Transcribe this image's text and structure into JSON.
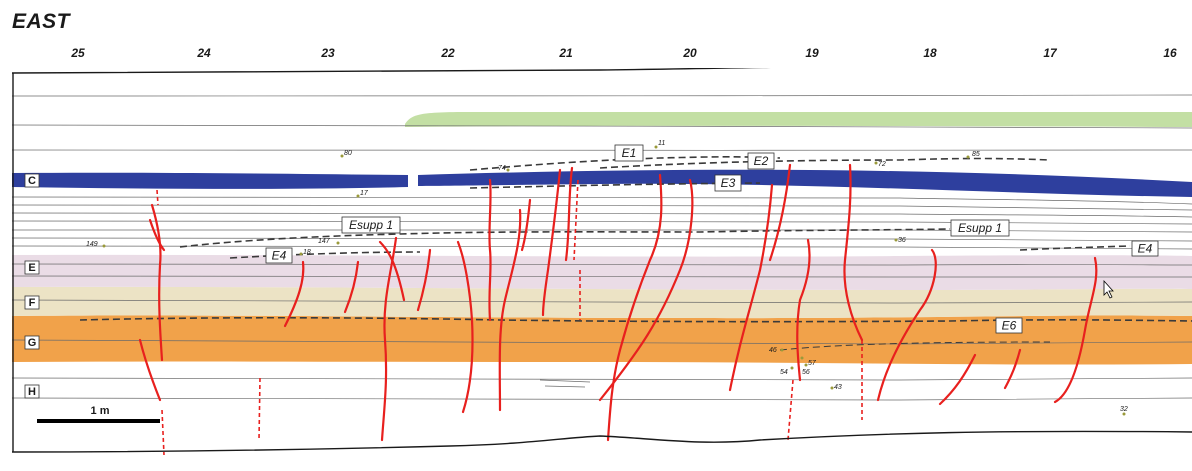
{
  "title": "EAST",
  "ticks": [
    "25",
    "24",
    "23",
    "22",
    "21",
    "20",
    "19",
    "18",
    "17",
    "16"
  ],
  "units": [
    "C",
    "E",
    "F",
    "G",
    "H"
  ],
  "horizons": [
    "E1",
    "E2",
    "E3",
    "Esupp 1",
    "Esupp 1",
    "E4",
    "E4",
    "E6"
  ],
  "samples": [
    "11",
    "80",
    "85",
    "72",
    "74",
    "17",
    "149",
    "147",
    "18",
    "36",
    "46",
    "57",
    "54",
    "56",
    "43",
    "32"
  ],
  "scale_bar": "1 m",
  "colors": {
    "unit_c": "#2e3f9e",
    "unit_e": "#eadce6",
    "unit_f": "#ece3c5",
    "unit_g": "#f1a24a",
    "top_soil": "#c3dfa4",
    "cracks": "#e8201e"
  }
}
